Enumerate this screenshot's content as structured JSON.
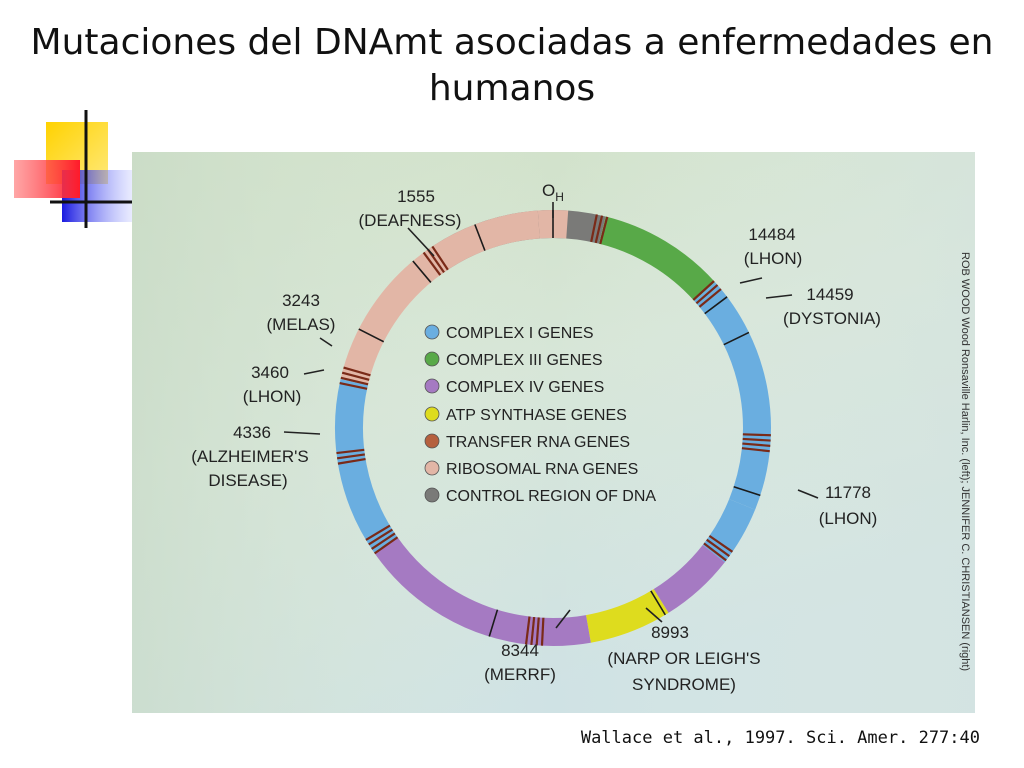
{
  "slide": {
    "title_line1": "Mutaciones del DNAmt asociadas a enfermedades en",
    "title_line2": "humanos",
    "citation": "Wallace et al., 1997. Sci. Amer. 277:40"
  },
  "figure": {
    "origin_label": "O",
    "origin_sub": "H",
    "credit": "ROB WOOD Wood Ronsaville Harlin, Inc. (left); JENNIFER C. CHRISTIANSEN (right)",
    "legend": [
      {
        "label": "COMPLEX I GENES",
        "color": "#6aaee0"
      },
      {
        "label": "COMPLEX III GENES",
        "color": "#58a948"
      },
      {
        "label": "COMPLEX IV GENES",
        "color": "#a57ac2"
      },
      {
        "label": "ATP SYNTHASE GENES",
        "color": "#dedc1e"
      },
      {
        "label": "TRANSFER RNA GENES",
        "color": "#b5603e"
      },
      {
        "label": "RIBOSOMAL RNA GENES",
        "color": "#e2b6a6"
      },
      {
        "label": "CONTROL REGION OF DNA",
        "color": "#7a7a78"
      }
    ],
    "mutations": [
      {
        "line1": "1555",
        "line2": "(DEAFNESS)",
        "line3": ""
      },
      {
        "line1": "14484",
        "line2": "(LHON)",
        "line3": ""
      },
      {
        "line1": "14459",
        "line2": "(DYSTONIA)",
        "line3": ""
      },
      {
        "line1": "3243",
        "line2": "(MELAS)",
        "line3": ""
      },
      {
        "line1": "3460",
        "line2": "(LHON)",
        "line3": ""
      },
      {
        "line1": "4336",
        "line2": "(ALZHEIMER'S",
        "line3": "DISEASE)"
      },
      {
        "line1": "11778",
        "line2": "(LHON)",
        "line3": ""
      },
      {
        "line1": "8344",
        "line2": "(MERRF)",
        "line3": ""
      },
      {
        "line1": "8993",
        "line2": "(NARP OR LEIGH'S",
        "line3": "SYNDROME)"
      }
    ]
  }
}
